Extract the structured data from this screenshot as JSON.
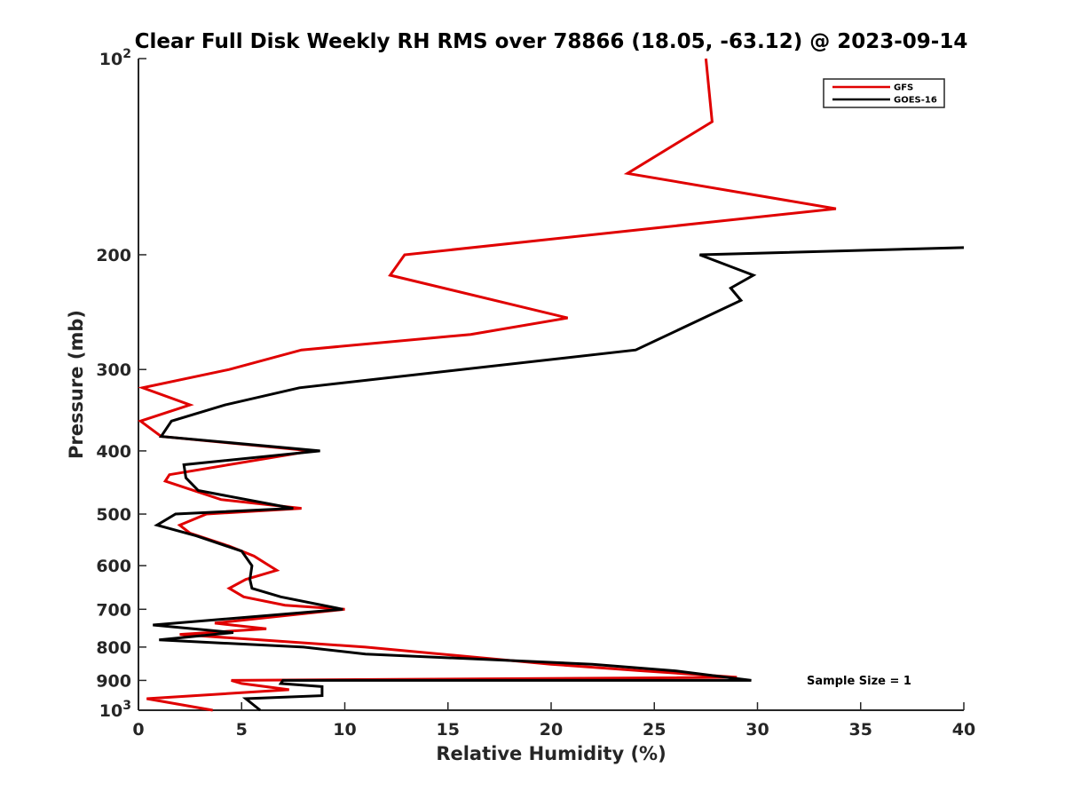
{
  "chart_data": {
    "type": "line",
    "title": "Clear Full Disk Weekly RH RMS over 78866 (18.05, -63.12) @ 2023-09-14",
    "xlabel": "Relative Humidity (%)",
    "ylabel": "Pressure (mb)",
    "xlim": [
      0,
      40
    ],
    "ylim": [
      100,
      1000
    ],
    "y_scale": "log",
    "y_reversed": true,
    "x_ticks": [
      "0",
      "5",
      "10",
      "15",
      "20",
      "25",
      "30",
      "35",
      "40"
    ],
    "y_ticks": [
      {
        "value": 100,
        "base": "10",
        "exp": "2"
      },
      {
        "value": 200,
        "label": "200"
      },
      {
        "value": 300,
        "label": "300"
      },
      {
        "value": 400,
        "label": "400"
      },
      {
        "value": 500,
        "label": "500"
      },
      {
        "value": 600,
        "label": "600"
      },
      {
        "value": 700,
        "label": "700"
      },
      {
        "value": 800,
        "label": "800"
      },
      {
        "value": 900,
        "label": "900"
      },
      {
        "value": 1000,
        "base": "10",
        "exp": "3"
      }
    ],
    "legend_position": "top-right",
    "annotation": "Sample Size = 1",
    "series": [
      {
        "name": "GFS",
        "color": "#e00000",
        "points": [
          [
            27.5,
            100
          ],
          [
            27.8,
            125
          ],
          [
            23.7,
            150
          ],
          [
            33.8,
            170
          ],
          [
            12.9,
            200
          ],
          [
            12.2,
            215
          ],
          [
            20.8,
            250
          ],
          [
            16.1,
            265
          ],
          [
            7.9,
            280
          ],
          [
            4.4,
            300
          ],
          [
            0.2,
            320
          ],
          [
            2.5,
            340
          ],
          [
            0.1,
            360
          ],
          [
            1.1,
            380
          ],
          [
            8.4,
            400
          ],
          [
            1.5,
            435
          ],
          [
            1.3,
            445
          ],
          [
            4.0,
            475
          ],
          [
            7.9,
            490
          ],
          [
            3.3,
            500
          ],
          [
            2.0,
            520
          ],
          [
            2.5,
            535
          ],
          [
            4.4,
            560
          ],
          [
            5.6,
            580
          ],
          [
            6.7,
            610
          ],
          [
            5.2,
            630
          ],
          [
            4.4,
            650
          ],
          [
            5.1,
            670
          ],
          [
            7.1,
            690
          ],
          [
            10.0,
            700
          ],
          [
            3.7,
            735
          ],
          [
            6.2,
            750
          ],
          [
            2.0,
            765
          ],
          [
            5.9,
            780
          ],
          [
            11.0,
            800
          ],
          [
            20.0,
            850
          ],
          [
            24.4,
            870
          ],
          [
            29.0,
            890
          ],
          [
            4.5,
            900
          ],
          [
            5.0,
            910
          ],
          [
            7.3,
            930
          ],
          [
            0.4,
            960
          ],
          [
            3.6,
            1000
          ]
        ]
      },
      {
        "name": "GOES-16",
        "color": "#000000",
        "points": [
          [
            40.0,
            195
          ],
          [
            27.2,
            200
          ],
          [
            29.8,
            215
          ],
          [
            28.7,
            225
          ],
          [
            29.2,
            235
          ],
          [
            24.1,
            280
          ],
          [
            7.8,
            320
          ],
          [
            4.2,
            340
          ],
          [
            1.6,
            360
          ],
          [
            1.1,
            380
          ],
          [
            8.8,
            400
          ],
          [
            2.2,
            420
          ],
          [
            2.3,
            440
          ],
          [
            2.9,
            460
          ],
          [
            7.5,
            490
          ],
          [
            1.8,
            500
          ],
          [
            0.9,
            520
          ],
          [
            2.8,
            540
          ],
          [
            5.0,
            570
          ],
          [
            5.5,
            600
          ],
          [
            5.4,
            630
          ],
          [
            5.5,
            650
          ],
          [
            6.9,
            670
          ],
          [
            9.9,
            700
          ],
          [
            0.7,
            740
          ],
          [
            4.6,
            760
          ],
          [
            1.0,
            780
          ],
          [
            8.0,
            800
          ],
          [
            11.0,
            820
          ],
          [
            22.0,
            850
          ],
          [
            26.0,
            870
          ],
          [
            29.7,
            900
          ],
          [
            7.0,
            900
          ],
          [
            6.9,
            910
          ],
          [
            8.9,
            920
          ],
          [
            8.9,
            950
          ],
          [
            5.2,
            960
          ],
          [
            5.9,
            1000
          ]
        ]
      }
    ]
  }
}
